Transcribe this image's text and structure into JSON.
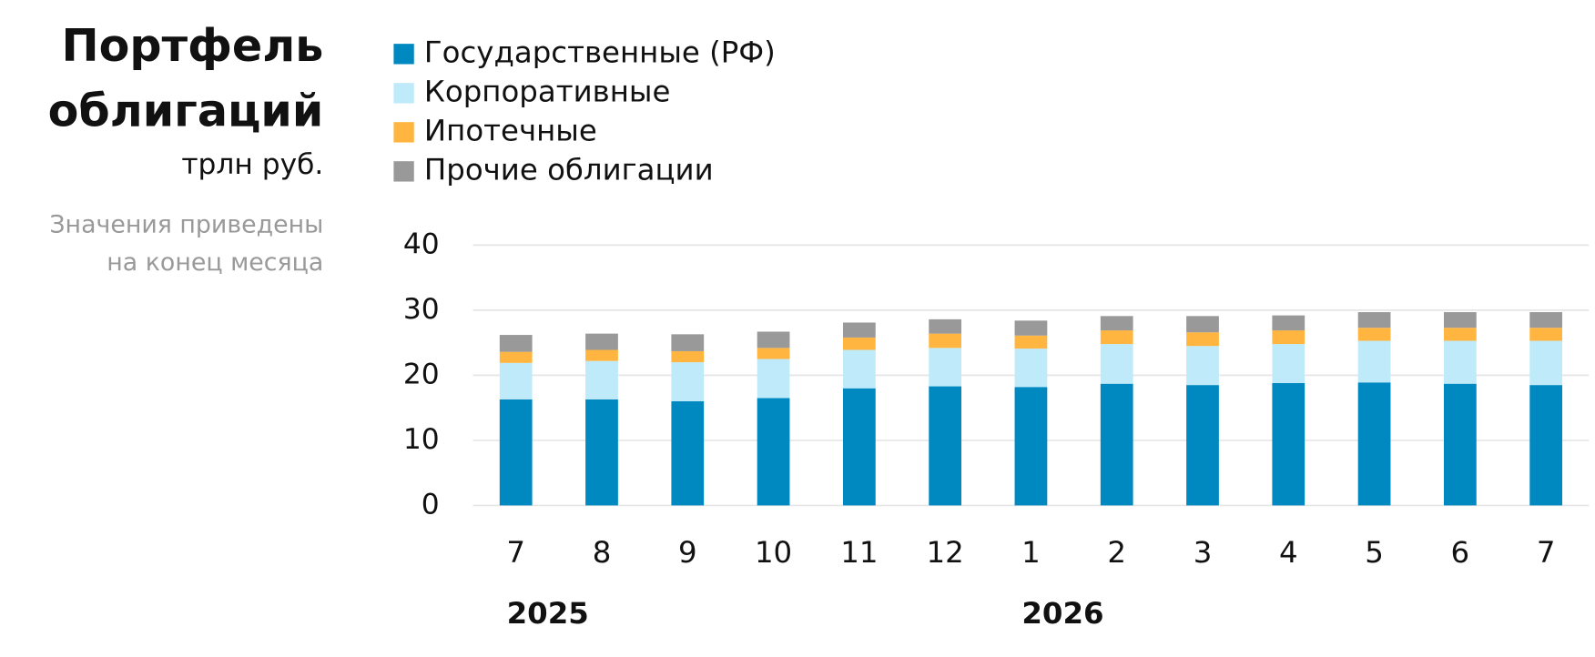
{
  "chart_data": {
    "type": "stacked_bar",
    "title_lines": [
      "Портфель",
      "облигаций"
    ],
    "unit": "трлн руб.",
    "note_lines": [
      "Значения приведены",
      "на конец месяца"
    ],
    "categories": [
      "7",
      "8",
      "9",
      "10",
      "11",
      "12",
      "1",
      "2",
      "3",
      "4",
      "5",
      "6",
      "7"
    ],
    "year_labels": [
      "2025",
      "2026"
    ],
    "series": [
      {
        "name": "Государственные (РФ)",
        "color": "#0089c0",
        "values": [
          16.3,
          16.3,
          16.0,
          16.5,
          18.0,
          18.3,
          18.2,
          18.7,
          18.5,
          18.8,
          18.9,
          18.7,
          18.5
        ]
      },
      {
        "name": "Корпоративные",
        "color": "#bfeafa",
        "values": [
          5.6,
          5.9,
          6.0,
          6.0,
          5.9,
          5.9,
          5.9,
          6.1,
          6.0,
          6.0,
          6.4,
          6.6,
          6.8
        ]
      },
      {
        "name": "Ипотечные",
        "color": "#ffb53f",
        "values": [
          1.7,
          1.7,
          1.7,
          1.7,
          1.9,
          2.2,
          2.0,
          2.1,
          2.1,
          2.1,
          2.0,
          2.0,
          2.0
        ]
      },
      {
        "name": "Прочие облигации",
        "color": "#999999",
        "values": [
          2.6,
          2.5,
          2.6,
          2.5,
          2.3,
          2.2,
          2.3,
          2.2,
          2.5,
          2.3,
          2.4,
          2.4,
          2.4
        ]
      }
    ],
    "ylim": [
      0,
      40
    ],
    "yticks": [
      0,
      10,
      20,
      30,
      40
    ],
    "grid": true
  }
}
